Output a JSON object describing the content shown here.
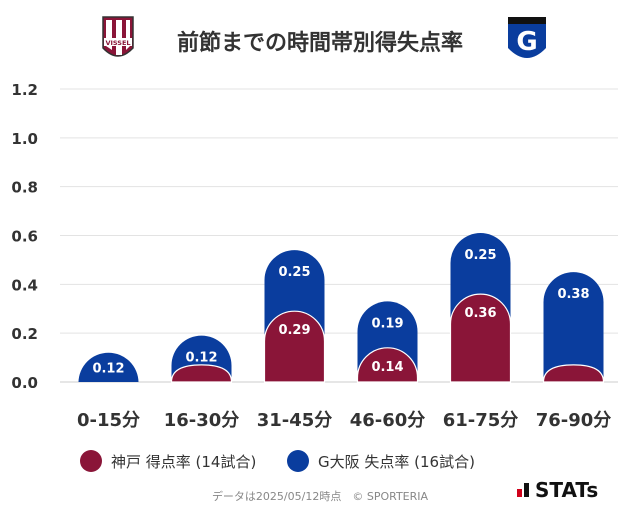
{
  "header": {
    "title": "前節までの時間帯別得失点率",
    "left_logo": {
      "name": "vissel-kobe-crest",
      "text": "VISSEL"
    },
    "right_logo": {
      "name": "gamba-osaka-crest",
      "text": "G"
    }
  },
  "chart_data": {
    "type": "bar",
    "stacked": true,
    "categories": [
      "0-15分",
      "16-30分",
      "31-45分",
      "46-60分",
      "61-75分",
      "76-90分"
    ],
    "series": [
      {
        "name": "神戸 得点率 (14試合)",
        "color": "#8a1538",
        "values": [
          0.0,
          0.07,
          0.29,
          0.14,
          0.36,
          0.07
        ],
        "labels": [
          "",
          "",
          "0.29",
          "0.14",
          "0.36",
          ""
        ]
      },
      {
        "name": "G大阪 失点率 (16試合)",
        "color": "#0a3d9e",
        "values": [
          0.12,
          0.12,
          0.25,
          0.19,
          0.25,
          0.38
        ],
        "labels": [
          "0.12",
          "0.12",
          "0.25",
          "0.19",
          "0.25",
          "0.38"
        ]
      }
    ],
    "yticks": [
      "0.0",
      "0.2",
      "0.4",
      "0.6",
      "0.8",
      "1.0",
      "1.2"
    ],
    "ylim": [
      0,
      1.2
    ],
    "grid": true,
    "legend_position": "bottom"
  },
  "footer": {
    "note": "データは2025/05/12時点　© SPORTERIA",
    "brand": "STATs"
  }
}
